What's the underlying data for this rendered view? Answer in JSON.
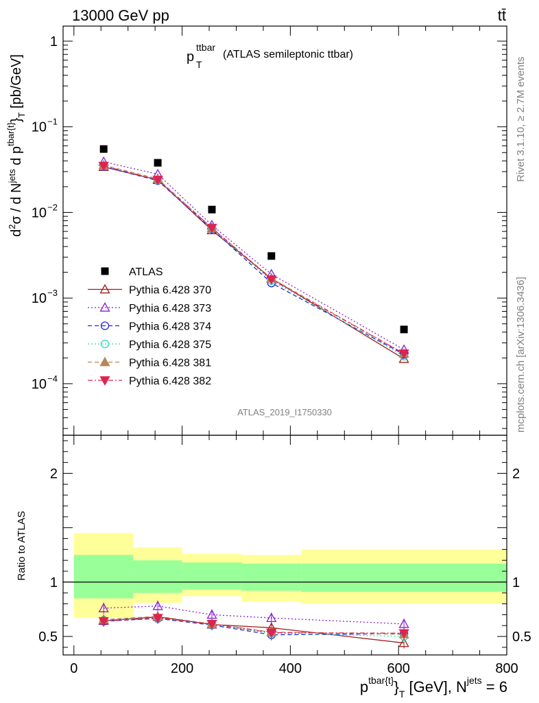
{
  "header": {
    "left": "13000 GeV pp",
    "right": "tt̄"
  },
  "side": {
    "rivet": "Rivet 3.1.10, ≥ 2.7M events",
    "site": "mcplots.cern.ch [arXiv:1306.3436]"
  },
  "main": {
    "title_main": "p",
    "title_sup": "ttbar",
    "title_sub": "T",
    "title_rest": "(ATLAS semileptonic ttbar)",
    "watermark": "ATLAS_2019_I1750330",
    "ylabel": "d²σ / d Nʲᵉᵗˢ d p^{tbar{t}}_T [pb/GeV]",
    "ytick_labels": [
      "1",
      "10",
      "10",
      "10",
      "10"
    ],
    "ytick_exps": [
      "",
      "−1",
      "−2",
      "−3",
      "−4"
    ]
  },
  "ratio": {
    "ylabel": "Ratio to ATLAS",
    "ytick_labels": [
      "0.5",
      "1",
      "2"
    ],
    "ytick_right_labels": [
      "0.5",
      "1",
      "2"
    ]
  },
  "xaxis": {
    "tick_labels": [
      "0",
      "200",
      "400",
      "600",
      "800"
    ],
    "label": "p^{tbar{t}}_T [GeV], N^{jets} = 6"
  },
  "colors": {
    "band_inner": "#99ff99",
    "band_outer": "#ffff99"
  },
  "chart_data": [
    {
      "type": "scatter",
      "title": "p_T^ttbar (ATLAS semileptonic ttbar)",
      "xlabel": "p^{tbar{t}}_T [GeV], N^{jets} = 6",
      "ylabel": "d²σ / d N^{jets} d p^{tbar{t}}_T [pb/GeV]",
      "xlim": [
        -20,
        800
      ],
      "ylim": [
        2.5e-05,
        1.5
      ],
      "yscale": "log",
      "legend_position": "center-left",
      "x": [
        55,
        155,
        255,
        365,
        610
      ],
      "series": [
        {
          "name": "ATLAS",
          "color": "#000000",
          "marker": "square",
          "line": "none",
          "values": [
            0.055,
            0.038,
            0.0108,
            0.0031,
            0.00043
          ]
        },
        {
          "name": "Pythia 6.428 370",
          "color": "#a01818",
          "marker": "triangle-up-open",
          "line": "solid",
          "values": [
            0.034,
            0.024,
            0.0062,
            0.0017,
            0.000195
          ]
        },
        {
          "name": "Pythia 6.428 373",
          "color": "#8a1ccf",
          "marker": "triangle-up-open",
          "line": "dotted",
          "values": [
            0.039,
            0.028,
            0.0071,
            0.0019,
            0.00025
          ]
        },
        {
          "name": "Pythia 6.428 374",
          "color": "#2424dd",
          "marker": "circle-open",
          "line": "dashed",
          "values": [
            0.0343,
            0.0235,
            0.0064,
            0.0015,
            0.00022
          ]
        },
        {
          "name": "Pythia 6.428 375",
          "color": "#22ddb6",
          "marker": "circle-open",
          "line": "dotted",
          "values": [
            0.0348,
            0.0238,
            0.0065,
            0.0016,
            0.00021
          ]
        },
        {
          "name": "Pythia 6.428 381",
          "color": "#b8865a",
          "marker": "triangle-up",
          "line": "dashed",
          "values": [
            0.0356,
            0.0247,
            0.0066,
            0.0017,
            0.000225
          ]
        },
        {
          "name": "Pythia 6.428 382",
          "color": "#dd2450",
          "marker": "triangle-down",
          "line": "dashdot",
          "values": [
            0.035,
            0.024,
            0.0066,
            0.00165,
            0.000225
          ]
        }
      ]
    },
    {
      "type": "scatter",
      "ylabel": "Ratio to ATLAS",
      "xlim": [
        -20,
        800
      ],
      "ylim": [
        0.33,
        2.35
      ],
      "x": [
        55,
        155,
        255,
        365,
        610
      ],
      "reference_line": 1,
      "band_bins": [
        [
          0,
          110
        ],
        [
          110,
          200
        ],
        [
          200,
          310
        ],
        [
          310,
          420
        ],
        [
          420,
          800
        ]
      ],
      "band_inner": [
        [
          0.85,
          1.25
        ],
        [
          0.9,
          1.2
        ],
        [
          0.93,
          1.18
        ],
        [
          0.92,
          1.17
        ],
        [
          0.91,
          1.17
        ]
      ],
      "band_outer": [
        [
          0.67,
          1.45
        ],
        [
          0.81,
          1.32
        ],
        [
          0.87,
          1.26
        ],
        [
          0.82,
          1.25
        ],
        [
          0.8,
          1.3
        ]
      ],
      "series": [
        {
          "name": "Pythia 6.428 370",
          "values": [
            0.645,
            0.68,
            0.61,
            0.58,
            0.44
          ]
        },
        {
          "name": "Pythia 6.428 373",
          "values": [
            0.76,
            0.78,
            0.7,
            0.67,
            0.615
          ]
        },
        {
          "name": "Pythia 6.428 374",
          "values": [
            0.64,
            0.665,
            0.605,
            0.515,
            0.525
          ]
        },
        {
          "name": "Pythia 6.428 375",
          "values": [
            0.65,
            0.67,
            0.61,
            0.53,
            0.5
          ]
        },
        {
          "name": "Pythia 6.428 381",
          "values": [
            0.655,
            0.685,
            0.615,
            0.54,
            0.52
          ]
        },
        {
          "name": "Pythia 6.428 382",
          "values": [
            0.64,
            0.67,
            0.615,
            0.535,
            0.53
          ]
        }
      ]
    }
  ]
}
